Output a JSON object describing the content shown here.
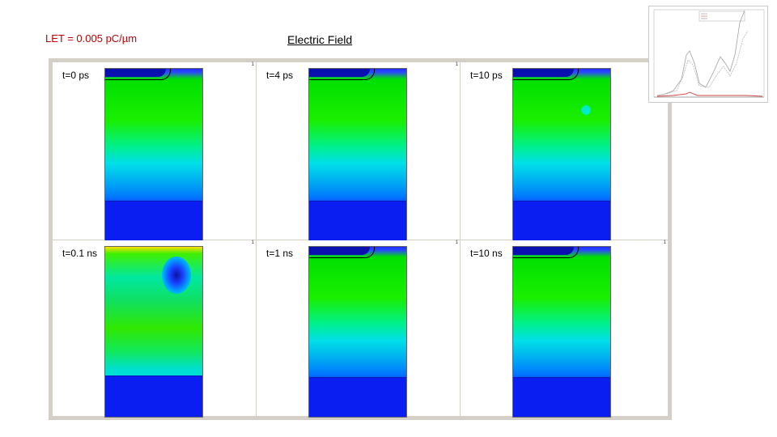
{
  "header": {
    "let_label": "LET = 0.005 pC/µm",
    "title": "Electric Field"
  },
  "panels": [
    {
      "time_label": "t=0 ps",
      "corner_mark": "1"
    },
    {
      "time_label": "t=4 ps",
      "corner_mark": "1"
    },
    {
      "time_label": "t=10 ps",
      "corner_mark": "1"
    },
    {
      "time_label": "t=0.1 ns",
      "corner_mark": "1"
    },
    {
      "time_label": "t=1 ns",
      "corner_mark": "1"
    },
    {
      "time_label": "t=10 ns",
      "corner_mark": "1"
    }
  ],
  "colors": {
    "let_label": "#c00000",
    "frame": "#d4d0c8",
    "field_high": "#1a10c8",
    "field_mid": "#00e000",
    "field_low": "#0b1ef2"
  }
}
